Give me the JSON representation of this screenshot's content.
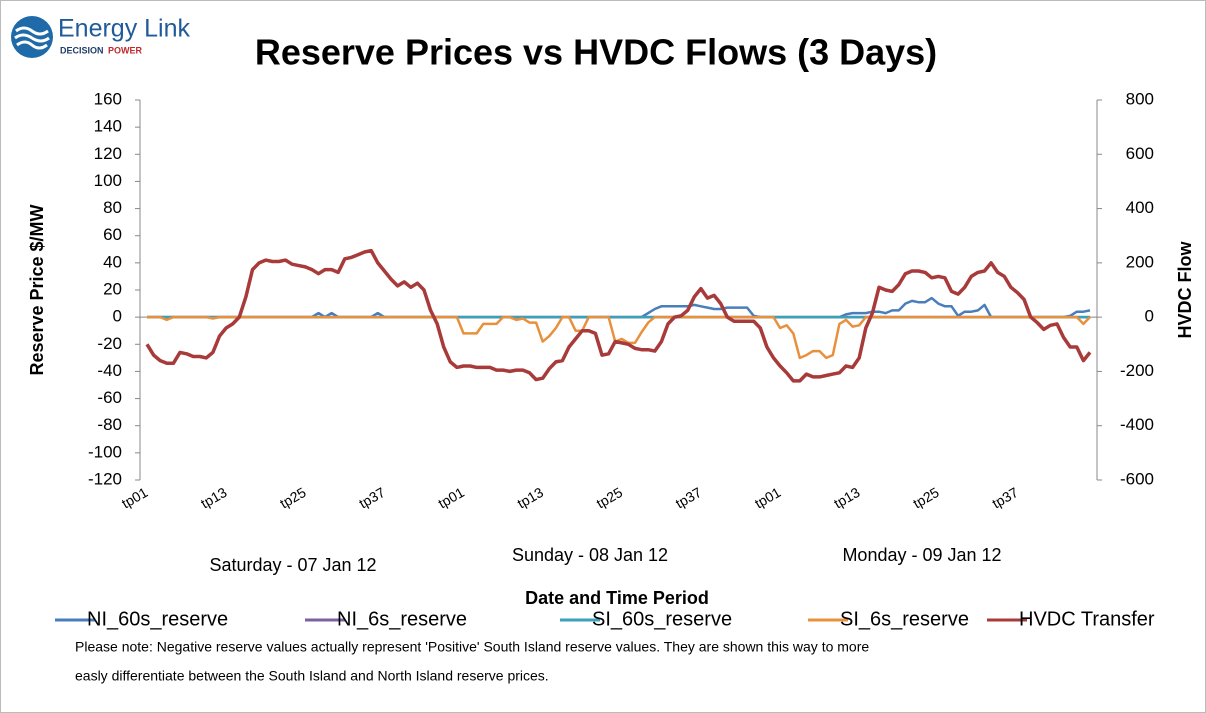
{
  "logo": {
    "name": "Energy Link",
    "tag_1": "DECISION",
    "tag_2": "POWER"
  },
  "chart_data": {
    "type": "line",
    "title": "Reserve Prices vs HVDC Flows (3 Days)",
    "y_label": "Reserve Price $/MW",
    "y2_label": "HVDC Flow",
    "x_label": "Date and Time Period",
    "day_labels": [
      "Saturday - 07 Jan 12",
      "Sunday - 08 Jan 12",
      "Monday - 09 Jan 12"
    ],
    "note": [
      "Please note: Negative reserve values actually represent 'Positive' South Island reserve values. They are shown this way to more",
      "easly differentiate between the South Island and North Island reserve prices."
    ],
    "categories": [
      "tp01",
      null,
      null,
      null,
      null,
      null,
      null,
      null,
      null,
      null,
      null,
      null,
      "tp13",
      null,
      null,
      null,
      null,
      null,
      null,
      null,
      null,
      null,
      null,
      null,
      "tp25",
      null,
      null,
      null,
      null,
      null,
      null,
      null,
      null,
      null,
      null,
      null,
      "tp37",
      null,
      null,
      null,
      null,
      null,
      null,
      null,
      null,
      null,
      null,
      null,
      "tp01",
      null,
      null,
      null,
      null,
      null,
      null,
      null,
      null,
      null,
      null,
      null,
      "tp13",
      null,
      null,
      null,
      null,
      null,
      null,
      null,
      null,
      null,
      null,
      null,
      "tp25",
      null,
      null,
      null,
      null,
      null,
      null,
      null,
      null,
      null,
      null,
      null,
      "tp37",
      null,
      null,
      null,
      null,
      null,
      null,
      null,
      null,
      null,
      null,
      null,
      "tp01",
      null,
      null,
      null,
      null,
      null,
      null,
      null,
      null,
      null,
      null,
      null,
      "tp13",
      null,
      null,
      null,
      null,
      null,
      null,
      null,
      null,
      null,
      null,
      null,
      "tp25",
      null,
      null,
      null,
      null,
      null,
      null,
      null,
      null,
      null,
      null,
      null,
      "tp37",
      null,
      null,
      null,
      null,
      null,
      null,
      null,
      null,
      null,
      null,
      null
    ],
    "ylim": [
      -120,
      160
    ],
    "yticks": [
      -120,
      -100,
      -80,
      -60,
      -40,
      -20,
      0,
      20,
      40,
      60,
      80,
      100,
      120,
      140,
      160
    ],
    "y2lim": [
      -600,
      800
    ],
    "y2ticks": [
      -600,
      -400,
      -200,
      0,
      200,
      400,
      600,
      800
    ],
    "series": [
      {
        "name": "NI_60s_reserve",
        "color": "#4a7ebb",
        "values": [
          0,
          0,
          0,
          0,
          0,
          0,
          0,
          0,
          0,
          0,
          0,
          0,
          0,
          0,
          0,
          0,
          0,
          0,
          0,
          0,
          0,
          0,
          0,
          0,
          0,
          0,
          3,
          0,
          3,
          0,
          0,
          0,
          0,
          0,
          0,
          3,
          0,
          0,
          0,
          0,
          0,
          0,
          0,
          0,
          0,
          0,
          0,
          0,
          0,
          0,
          0,
          0,
          0,
          0,
          0,
          0,
          0,
          0,
          0,
          0,
          0,
          0,
          0,
          0,
          0,
          0,
          0,
          0,
          0,
          0,
          0,
          0,
          0,
          0,
          0,
          0,
          3,
          6,
          8,
          8,
          8,
          8,
          8,
          9,
          8,
          7,
          6,
          6,
          7,
          7,
          7,
          7,
          1,
          0,
          0,
          0,
          0,
          0,
          0,
          0,
          0,
          0,
          0,
          0,
          0,
          0,
          2,
          3,
          3,
          3,
          4,
          4,
          3,
          5,
          5,
          10,
          12,
          11,
          11,
          14,
          10,
          8,
          8,
          1,
          4,
          4,
          5,
          9,
          0,
          0,
          0,
          0,
          0,
          0,
          0,
          0,
          0,
          0,
          0,
          0,
          1,
          4,
          4,
          5
        ]
      },
      {
        "name": "NI_6s_reserve",
        "color": "#7d60a0",
        "values": [
          0,
          0,
          0,
          0,
          0,
          0,
          0,
          0,
          0,
          0,
          0,
          0,
          0,
          0,
          0,
          0,
          0,
          0,
          0,
          0,
          0,
          0,
          0,
          0,
          0,
          0,
          0,
          0,
          0,
          0,
          0,
          0,
          0,
          0,
          0,
          0,
          0,
          0,
          0,
          0,
          0,
          0,
          0,
          0,
          0,
          0,
          0,
          0,
          0,
          0,
          0,
          0,
          0,
          0,
          0,
          0,
          0,
          0,
          0,
          0,
          0,
          0,
          0,
          0,
          0,
          0,
          0,
          0,
          0,
          0,
          0,
          0,
          0,
          0,
          0,
          0,
          0,
          0,
          0,
          0,
          0,
          0,
          0,
          0,
          0,
          0,
          0,
          0,
          0,
          0,
          0,
          0,
          0,
          0,
          0,
          0,
          0,
          0,
          0,
          0,
          0,
          0,
          0,
          0,
          0,
          0,
          0,
          0,
          0,
          0,
          0,
          0,
          0,
          0,
          0,
          0,
          0,
          0,
          0,
          0,
          0,
          0,
          0,
          0,
          0,
          0,
          0,
          0,
          0,
          0,
          0,
          0,
          0,
          0,
          0,
          0,
          0,
          0,
          0,
          0,
          0,
          0,
          0,
          0
        ]
      },
      {
        "name": "SI_60s_reserve",
        "color": "#3ba0b8",
        "values": [
          0,
          0,
          0,
          0,
          0,
          0,
          0,
          0,
          0,
          0,
          0,
          0,
          0,
          0,
          0,
          0,
          0,
          0,
          0,
          0,
          0,
          0,
          0,
          0,
          0,
          0,
          0,
          0,
          0,
          0,
          0,
          0,
          0,
          0,
          0,
          0,
          0,
          0,
          0,
          0,
          0,
          0,
          0,
          0,
          0,
          0,
          0,
          0,
          0,
          0,
          0,
          0,
          0,
          0,
          0,
          0,
          0,
          0,
          0,
          0,
          0,
          0,
          0,
          0,
          0,
          0,
          0,
          0,
          0,
          0,
          0,
          0,
          0,
          0,
          0,
          0,
          0,
          0,
          0,
          0,
          0,
          0,
          0,
          0,
          0,
          0,
          0,
          0,
          0,
          0,
          0,
          0,
          0,
          0,
          0,
          0,
          0,
          0,
          0,
          0,
          0,
          0,
          0,
          0,
          0,
          0,
          0,
          0,
          0,
          0,
          0,
          0,
          0,
          0,
          0,
          0,
          0,
          0,
          0,
          0,
          0,
          0,
          0,
          0,
          0,
          0,
          0,
          0,
          0,
          0,
          0,
          0,
          0,
          0,
          0,
          0,
          0,
          0,
          0,
          0,
          0,
          0,
          0,
          0
        ]
      },
      {
        "name": "SI_6s_reserve",
        "color": "#e8903c",
        "values": [
          0,
          0,
          0,
          -2,
          0,
          0,
          0,
          0,
          0,
          0,
          -1,
          0,
          0,
          0,
          0,
          0,
          0,
          0,
          0,
          0,
          0,
          0,
          0,
          0,
          0,
          0,
          0,
          0,
          0,
          0,
          0,
          0,
          0,
          0,
          0,
          0,
          0,
          0,
          0,
          0,
          0,
          0,
          0,
          0,
          0,
          0,
          0,
          0,
          -12,
          -12,
          -12,
          -5,
          -5,
          -5,
          0,
          0,
          -2,
          -1,
          -4,
          -4,
          -18,
          -14,
          -8,
          0,
          0,
          -10,
          -10,
          0,
          0,
          0,
          0,
          -18,
          -16,
          -19,
          -19,
          -11,
          -4,
          0,
          0,
          0,
          0,
          0,
          0,
          0,
          0,
          0,
          0,
          0,
          0,
          0,
          0,
          0,
          0,
          0,
          0,
          0,
          -8,
          -6,
          -12,
          -30,
          -28,
          -25,
          -25,
          -30,
          -28,
          -5,
          -2,
          -7,
          -6,
          0,
          0,
          0,
          0,
          0,
          0,
          0,
          0,
          0,
          0,
          0,
          0,
          0,
          0,
          0,
          0,
          0,
          0,
          0,
          0,
          0,
          0,
          0,
          0,
          0,
          0,
          0,
          0,
          0,
          0,
          0,
          0,
          0,
          -5,
          0
        ]
      },
      {
        "name": "HVDC Transfer",
        "color": "#a83a3a",
        "axis": "y2",
        "values": [
          -100,
          -140,
          -160,
          -170,
          -170,
          -130,
          -135,
          -145,
          -145,
          -150,
          -130,
          -70,
          -40,
          -25,
          0,
          75,
          175,
          200,
          210,
          205,
          205,
          210,
          195,
          190,
          185,
          175,
          160,
          175,
          175,
          165,
          215,
          220,
          230,
          240,
          245,
          200,
          170,
          140,
          115,
          130,
          110,
          125,
          100,
          25,
          -25,
          -110,
          -165,
          -185,
          -180,
          -180,
          -185,
          -185,
          -185,
          -195,
          -195,
          -200,
          -195,
          -195,
          -205,
          -230,
          -225,
          -190,
          -165,
          -160,
          -110,
          -80,
          -50,
          -50,
          -60,
          -140,
          -135,
          -90,
          -95,
          -100,
          -115,
          -120,
          -120,
          -125,
          -90,
          -25,
          0,
          5,
          25,
          75,
          105,
          70,
          80,
          50,
          0,
          -15,
          -15,
          -15,
          -15,
          -40,
          -110,
          -150,
          -180,
          -205,
          -235,
          -235,
          -210,
          -220,
          -220,
          -215,
          -210,
          -205,
          -180,
          -185,
          -150,
          -40,
          15,
          110,
          100,
          95,
          120,
          160,
          170,
          170,
          165,
          145,
          150,
          145,
          95,
          85,
          110,
          150,
          165,
          170,
          200,
          165,
          150,
          110,
          90,
          65,
          0,
          -20,
          -45,
          -30,
          -25,
          -75,
          -110,
          -110,
          -160,
          -130
        ]
      }
    ]
  }
}
